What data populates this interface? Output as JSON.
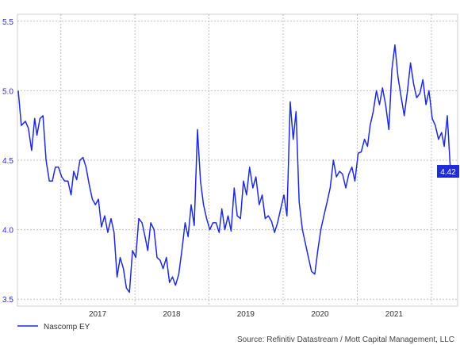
{
  "chart_data": {
    "type": "line",
    "title": "",
    "xlabel": "",
    "ylabel": "",
    "ylim": [
      3.45,
      5.55
    ],
    "y_ticks": [
      "3.5",
      "4.0",
      "4.5",
      "5.0",
      "5.5"
    ],
    "x_tick_labels": [
      "2017",
      "2018",
      "2019",
      "2020",
      "2021"
    ],
    "grid": true,
    "legend_position": "bottom-left",
    "series": [
      {
        "name": "Nascomp EY",
        "color": "#1f2bd9",
        "points": [
          [
            "2016-06-05",
            5.0
          ],
          [
            "2016-06-20",
            4.75
          ],
          [
            "2016-07-10",
            4.78
          ],
          [
            "2016-07-25",
            4.73
          ],
          [
            "2016-08-10",
            4.57
          ],
          [
            "2016-08-25",
            4.8
          ],
          [
            "2016-09-05",
            4.68
          ],
          [
            "2016-09-20",
            4.8
          ],
          [
            "2016-10-05",
            4.82
          ],
          [
            "2016-10-20",
            4.5
          ],
          [
            "2016-11-05",
            4.35
          ],
          [
            "2016-11-20",
            4.35
          ],
          [
            "2016-12-05",
            4.45
          ],
          [
            "2016-12-20",
            4.45
          ],
          [
            "2017-01-05",
            4.38
          ],
          [
            "2017-01-20",
            4.35
          ],
          [
            "2017-02-05",
            4.35
          ],
          [
            "2017-02-20",
            4.25
          ],
          [
            "2017-03-05",
            4.42
          ],
          [
            "2017-03-20",
            4.36
          ],
          [
            "2017-04-05",
            4.5
          ],
          [
            "2017-04-20",
            4.52
          ],
          [
            "2017-05-05",
            4.45
          ],
          [
            "2017-05-20",
            4.33
          ],
          [
            "2017-06-05",
            4.22
          ],
          [
            "2017-06-20",
            4.18
          ],
          [
            "2017-07-05",
            4.22
          ],
          [
            "2017-07-20",
            4.02
          ],
          [
            "2017-08-05",
            4.1
          ],
          [
            "2017-08-20",
            3.98
          ],
          [
            "2017-09-05",
            4.08
          ],
          [
            "2017-09-20",
            3.98
          ],
          [
            "2017-10-05",
            3.66
          ],
          [
            "2017-10-20",
            3.8
          ],
          [
            "2017-11-05",
            3.72
          ],
          [
            "2017-11-20",
            3.58
          ],
          [
            "2017-12-05",
            3.55
          ],
          [
            "2017-12-20",
            3.85
          ],
          [
            "2018-01-05",
            3.8
          ],
          [
            "2018-01-20",
            4.08
          ],
          [
            "2018-02-05",
            4.05
          ],
          [
            "2018-02-20",
            3.95
          ],
          [
            "2018-03-05",
            3.85
          ],
          [
            "2018-03-20",
            4.05
          ],
          [
            "2018-04-05",
            4.0
          ],
          [
            "2018-04-20",
            3.8
          ],
          [
            "2018-05-05",
            3.78
          ],
          [
            "2018-05-20",
            3.72
          ],
          [
            "2018-06-05",
            3.8
          ],
          [
            "2018-06-20",
            3.62
          ],
          [
            "2018-07-05",
            3.66
          ],
          [
            "2018-07-20",
            3.6
          ],
          [
            "2018-08-05",
            3.68
          ],
          [
            "2018-08-20",
            3.85
          ],
          [
            "2018-09-05",
            4.05
          ],
          [
            "2018-09-20",
            3.95
          ],
          [
            "2018-10-05",
            4.18
          ],
          [
            "2018-10-20",
            4.03
          ],
          [
            "2018-11-05",
            4.72
          ],
          [
            "2018-11-20",
            4.35
          ],
          [
            "2018-12-05",
            4.18
          ],
          [
            "2018-12-20",
            4.08
          ],
          [
            "2019-01-05",
            4.0
          ],
          [
            "2019-01-20",
            4.05
          ],
          [
            "2019-02-05",
            4.05
          ],
          [
            "2019-02-20",
            3.98
          ],
          [
            "2019-03-05",
            4.15
          ],
          [
            "2019-03-20",
            4.0
          ],
          [
            "2019-04-05",
            4.1
          ],
          [
            "2019-04-20",
            3.99
          ],
          [
            "2019-05-05",
            4.3
          ],
          [
            "2019-05-20",
            4.1
          ],
          [
            "2019-06-05",
            4.08
          ],
          [
            "2019-06-20",
            4.35
          ],
          [
            "2019-07-05",
            4.25
          ],
          [
            "2019-07-20",
            4.45
          ],
          [
            "2019-08-05",
            4.3
          ],
          [
            "2019-08-20",
            4.38
          ],
          [
            "2019-09-05",
            4.18
          ],
          [
            "2019-09-20",
            4.25
          ],
          [
            "2019-10-05",
            4.08
          ],
          [
            "2019-10-20",
            4.1
          ],
          [
            "2019-11-05",
            4.06
          ],
          [
            "2019-11-20",
            3.98
          ],
          [
            "2019-12-05",
            4.05
          ],
          [
            "2019-12-20",
            4.15
          ],
          [
            "2020-01-05",
            4.25
          ],
          [
            "2020-01-20",
            4.1
          ],
          [
            "2020-02-05",
            4.92
          ],
          [
            "2020-02-20",
            4.65
          ],
          [
            "2020-03-05",
            4.85
          ],
          [
            "2020-03-20",
            4.2
          ],
          [
            "2020-04-05",
            4.0
          ],
          [
            "2020-04-20",
            3.9
          ],
          [
            "2020-05-05",
            3.8
          ],
          [
            "2020-05-20",
            3.7
          ],
          [
            "2020-06-05",
            3.68
          ],
          [
            "2020-06-20",
            3.85
          ],
          [
            "2020-07-05",
            4.0
          ],
          [
            "2020-07-20",
            4.1
          ],
          [
            "2020-08-05",
            4.2
          ],
          [
            "2020-08-20",
            4.3
          ],
          [
            "2020-09-05",
            4.5
          ],
          [
            "2020-09-20",
            4.38
          ],
          [
            "2020-10-05",
            4.42
          ],
          [
            "2020-10-20",
            4.4
          ],
          [
            "2020-11-05",
            4.3
          ],
          [
            "2020-11-20",
            4.4
          ],
          [
            "2020-12-05",
            4.45
          ],
          [
            "2020-12-20",
            4.35
          ],
          [
            "2021-01-05",
            4.55
          ],
          [
            "2021-01-20",
            4.56
          ],
          [
            "2021-02-05",
            4.65
          ],
          [
            "2021-02-20",
            4.6
          ],
          [
            "2021-03-05",
            4.75
          ],
          [
            "2021-03-20",
            4.85
          ],
          [
            "2021-04-05",
            5.0
          ],
          [
            "2021-04-20",
            4.9
          ],
          [
            "2021-05-05",
            5.02
          ],
          [
            "2021-05-20",
            4.9
          ],
          [
            "2021-06-05",
            4.72
          ],
          [
            "2021-06-20",
            5.15
          ],
          [
            "2021-07-05",
            5.33
          ],
          [
            "2021-07-20",
            5.1
          ],
          [
            "2021-08-05",
            4.95
          ],
          [
            "2021-08-20",
            4.82
          ],
          [
            "2021-09-05",
            5.0
          ],
          [
            "2021-09-20",
            5.2
          ],
          [
            "2021-10-05",
            5.05
          ],
          [
            "2021-10-20",
            4.95
          ],
          [
            "2021-11-05",
            4.98
          ],
          [
            "2021-11-20",
            5.08
          ],
          [
            "2021-12-05",
            4.9
          ],
          [
            "2021-12-20",
            5.0
          ],
          [
            "2022-01-05",
            4.8
          ],
          [
            "2022-01-20",
            4.75
          ],
          [
            "2022-02-05",
            4.65
          ],
          [
            "2022-02-20",
            4.7
          ],
          [
            "2022-03-05",
            4.6
          ],
          [
            "2022-03-20",
            4.82
          ],
          [
            "2022-04-05",
            4.42
          ]
        ]
      }
    ],
    "last_value_label": "4.42",
    "source": "Source: Refinitiv Datastream / Mott Capital Management, LLC"
  }
}
